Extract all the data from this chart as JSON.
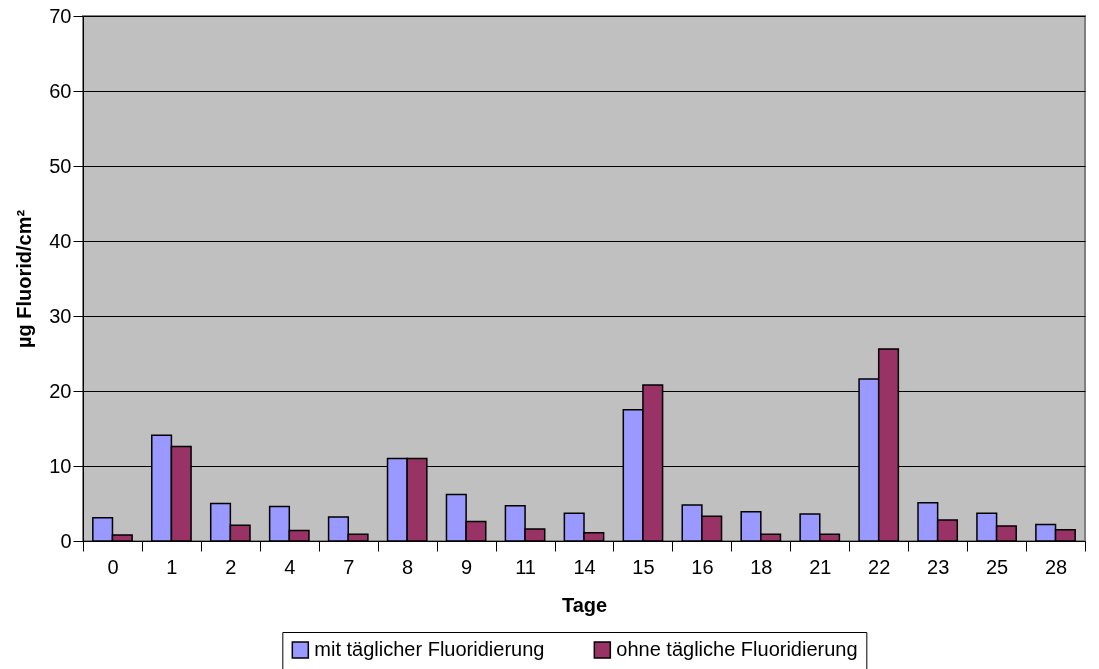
{
  "chart_data": {
    "type": "bar",
    "xlabel": "Tage",
    "ylabel": "µg Fluorid/cm²",
    "categories": [
      "0",
      "1",
      "2",
      "4",
      "7",
      "8",
      "9",
      "11",
      "14",
      "15",
      "16",
      "18",
      "21",
      "22",
      "23",
      "25",
      "28"
    ],
    "series": [
      {
        "name": "mit täglicher Fluoridierung",
        "color": "#9999ff",
        "values": [
          3.1,
          14.1,
          5.0,
          4.6,
          3.2,
          11.0,
          6.2,
          4.7,
          3.7,
          17.5,
          4.8,
          3.9,
          3.6,
          21.6,
          5.1,
          3.7,
          2.2
        ]
      },
      {
        "name": "ohne tägliche Fluoridierung",
        "color": "#993366",
        "values": [
          0.8,
          12.6,
          2.1,
          1.4,
          0.9,
          11.0,
          2.6,
          1.6,
          1.1,
          20.8,
          3.3,
          0.9,
          0.9,
          25.6,
          2.8,
          2.0,
          1.5
        ]
      }
    ],
    "ylim": [
      0,
      70
    ],
    "yticks": [
      0,
      10,
      20,
      30,
      40,
      50,
      60,
      70
    ],
    "grid": "y",
    "legend": "bottom"
  }
}
